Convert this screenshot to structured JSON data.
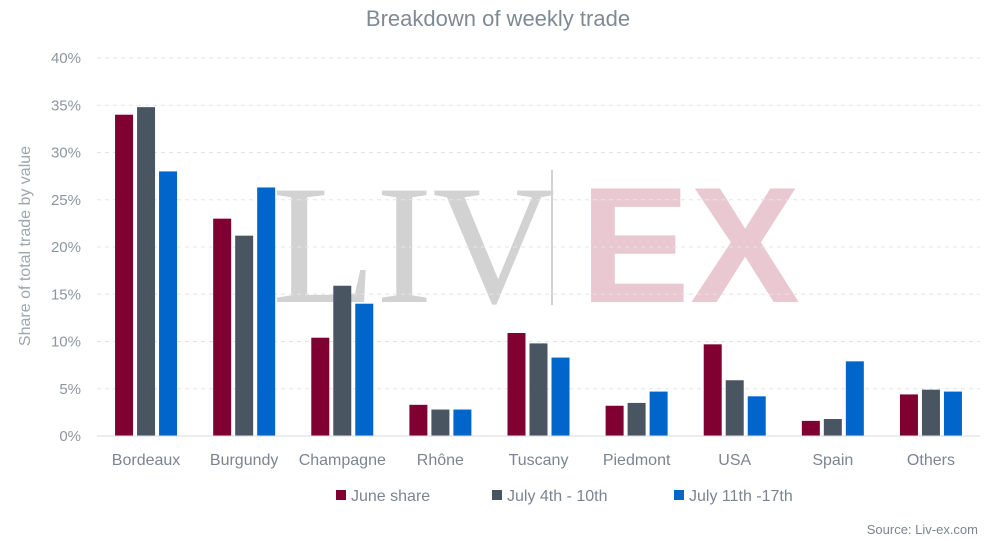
{
  "chart_data": {
    "type": "bar",
    "title": "Breakdown of weekly trade",
    "ylabel": "Share of total trade by value",
    "xlabel": "",
    "ylim": [
      0,
      40
    ],
    "yticks": [
      "0%",
      "5%",
      "10%",
      "15%",
      "20%",
      "25%",
      "30%",
      "35%",
      "40%"
    ],
    "grid": true,
    "legend_position": "bottom",
    "categories": [
      "Bordeaux",
      "Burgundy",
      "Champagne",
      "Rhône",
      "Tuscany",
      "Piedmont",
      "USA",
      "Spain",
      "Others"
    ],
    "series": [
      {
        "name": "June share",
        "color": "#800032",
        "values": [
          34.0,
          23.0,
          10.4,
          3.3,
          10.9,
          3.2,
          9.7,
          1.6,
          4.4
        ]
      },
      {
        "name": "July 4th - 10th",
        "color": "#4a5562",
        "values": [
          34.8,
          21.2,
          15.9,
          2.8,
          9.8,
          3.5,
          5.9,
          1.8,
          4.9
        ]
      },
      {
        "name": "July 11th -17th",
        "color": "#0066cc",
        "values": [
          28.0,
          26.3,
          14.0,
          2.8,
          8.3,
          4.7,
          4.2,
          7.9,
          4.7
        ]
      }
    ]
  },
  "watermark": {
    "left": "LIV",
    "right": "EX"
  },
  "source": "Source: Liv-ex.com"
}
